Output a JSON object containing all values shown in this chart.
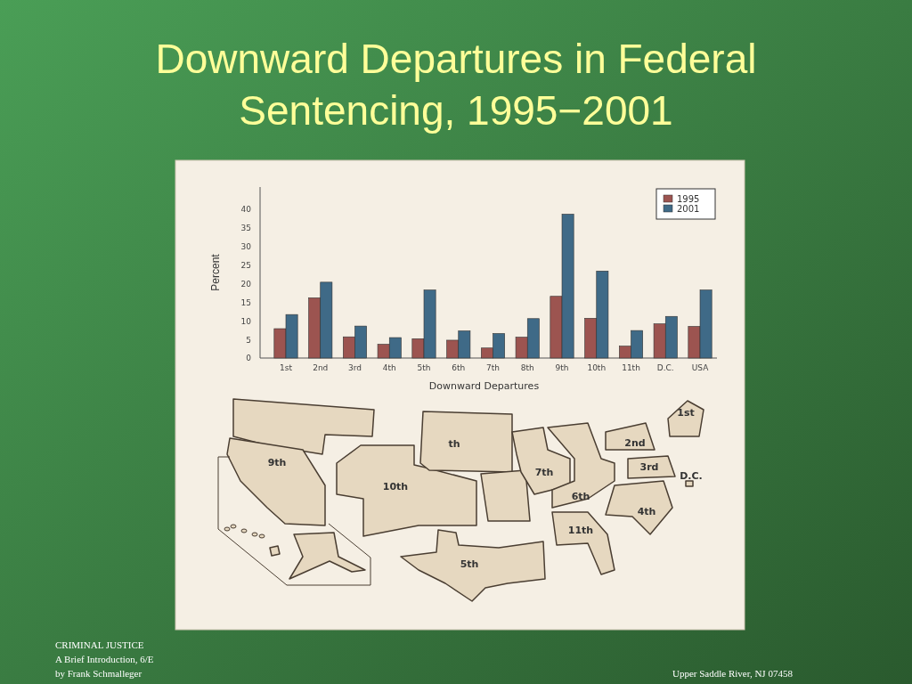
{
  "chart_data": {
    "type": "bar",
    "title": "Downward Departures in Federal Sentencing, 1995−2001",
    "xlabel": "Downward Departures",
    "ylabel": "Percent",
    "categories": [
      "1st",
      "2nd",
      "3rd",
      "4th",
      "5th",
      "6th",
      "7th",
      "8th",
      "9th",
      "10th",
      "11th",
      "D.C.",
      "USA"
    ],
    "series": [
      {
        "name": "1995",
        "color": "#9c5450",
        "values": [
          7.9,
          16.2,
          5.7,
          3.7,
          5.2,
          4.8,
          2.7,
          5.6,
          16.6,
          10.7,
          3.2,
          9.2,
          8.5
        ]
      },
      {
        "name": "2001",
        "color": "#3f6a87",
        "values": [
          11.7,
          20.4,
          8.6,
          5.5,
          18.3,
          7.3,
          6.6,
          10.6,
          38.7,
          23.4,
          7.4,
          11.2,
          18.3
        ]
      }
    ],
    "ylim": [
      0,
      46
    ],
    "yticks": [
      0,
      5,
      10,
      15,
      20,
      25,
      30,
      35,
      40
    ],
    "legend": "top right",
    "annotations": [
      "1st",
      "2nd",
      "3rd",
      "D.C.",
      "4th",
      "5th",
      "6th",
      "7th",
      "th",
      "9th",
      "10th",
      "11th",
      "CRIMINAL JUSTICE",
      "A Brief Introduction, 6/E",
      "by Frank Schmalleger",
      "Upper Saddle River, NJ 07458"
    ]
  }
}
